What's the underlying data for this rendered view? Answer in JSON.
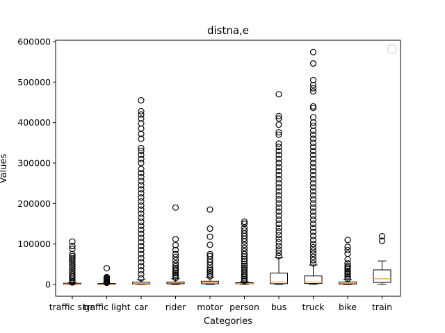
{
  "chart_data": {
    "type": "box",
    "title": "distna,e",
    "xlabel": "Categories",
    "ylabel": "Values",
    "ylim": [
      -25000,
      600000
    ],
    "yticks": [
      0,
      100000,
      200000,
      300000,
      400000,
      500000,
      600000
    ],
    "ytick_labels": [
      "0",
      "100000",
      "200000",
      "300000",
      "400000",
      "500000",
      "600000"
    ],
    "legend": "top-right, empty",
    "grid": false,
    "categories": [
      "traffic sign",
      "traffic light",
      "car",
      "rider",
      "motor",
      "person",
      "bus",
      "truck",
      "bike",
      "train"
    ],
    "boxes": [
      {
        "category": "traffic sign",
        "whislo": 0,
        "q1": 300,
        "med": 800,
        "q3": 1800,
        "whishi": 4000,
        "fliers": [
          5000,
          8000,
          12000,
          16000,
          20000,
          25000,
          30000,
          35000,
          40000,
          45000,
          50000,
          55000,
          60000,
          65000,
          70000,
          75000,
          88000,
          95000,
          106000
        ]
      },
      {
        "category": "traffic light",
        "whislo": 0,
        "q1": 200,
        "med": 500,
        "q3": 1200,
        "whishi": 3000,
        "fliers": [
          4000,
          6000,
          8000,
          10000,
          12000,
          14000,
          16000,
          18000,
          40000
        ]
      },
      {
        "category": "car",
        "whislo": 0,
        "q1": 800,
        "med": 2000,
        "q3": 5500,
        "whishi": 12000,
        "fliers": [
          15000,
          25000,
          35000,
          45000,
          55000,
          65000,
          75000,
          85000,
          95000,
          105000,
          115000,
          125000,
          135000,
          145000,
          155000,
          165000,
          175000,
          185000,
          195000,
          205000,
          215000,
          225000,
          235000,
          245000,
          255000,
          265000,
          275000,
          285000,
          300000,
          310000,
          320000,
          330000,
          337000,
          360000,
          372000,
          385000,
          398000,
          410000,
          420000,
          428000,
          455000
        ]
      },
      {
        "category": "rider",
        "whislo": 0,
        "q1": 1500,
        "med": 3500,
        "q3": 6000,
        "whishi": 14000,
        "fliers": [
          16000,
          20000,
          24000,
          28000,
          32000,
          36000,
          40000,
          45000,
          52000,
          60000,
          68000,
          75000,
          85000,
          97000,
          112000,
          190000
        ]
      },
      {
        "category": "motor",
        "whislo": 0,
        "q1": 1500,
        "med": 4000,
        "q3": 8000,
        "whishi": 18000,
        "fliers": [
          20000,
          25000,
          30000,
          35000,
          40000,
          48000,
          55000,
          62000,
          70000,
          75000,
          98000,
          118000,
          138000,
          185000
        ]
      },
      {
        "category": "person",
        "whislo": 0,
        "q1": 500,
        "med": 1200,
        "q3": 3000,
        "whishi": 7000,
        "fliers": [
          9000,
          13000,
          17000,
          21000,
          26000,
          31000,
          36000,
          41000,
          46000,
          51000,
          57000,
          63000,
          69000,
          75000,
          82000,
          90000,
          98000,
          106000,
          113000,
          120000,
          126000,
          133000,
          140000,
          150000,
          155000
        ]
      },
      {
        "category": "bus",
        "whislo": 0,
        "q1": 2000,
        "med": 6000,
        "q3": 28000,
        "whishi": 66000,
        "fliers": [
          70000,
          78000,
          86000,
          95000,
          104000,
          113000,
          122000,
          131000,
          140000,
          150000,
          160000,
          170000,
          180000,
          190000,
          200000,
          210000,
          220000,
          230000,
          240000,
          250000,
          260000,
          270000,
          280000,
          290000,
          300000,
          310000,
          320000,
          330000,
          340000,
          348000,
          370000,
          376000,
          395000,
          410000,
          416000,
          470000
        ]
      },
      {
        "category": "truck",
        "whislo": 0,
        "q1": 2500,
        "med": 6000,
        "q3": 21000,
        "whishi": 48000,
        "fliers": [
          52000,
          60000,
          68000,
          76000,
          84000,
          92000,
          100000,
          110000,
          120000,
          130000,
          140000,
          150000,
          160000,
          170000,
          180000,
          190000,
          200000,
          210000,
          220000,
          230000,
          240000,
          250000,
          260000,
          270000,
          280000,
          290000,
          300000,
          310000,
          320000,
          330000,
          340000,
          350000,
          360000,
          370000,
          380000,
          392000,
          400000,
          413000,
          436000,
          440000,
          477000,
          485000,
          493000,
          505000,
          546000,
          574000
        ]
      },
      {
        "category": "bike",
        "whislo": 0,
        "q1": 1000,
        "med": 3000,
        "q3": 6000,
        "whishi": 12000,
        "fliers": [
          14000,
          18000,
          22000,
          26000,
          30000,
          34000,
          38000,
          42000,
          46000,
          52000,
          62000,
          76000,
          85000,
          93000,
          110000
        ]
      },
      {
        "category": "train",
        "whislo": 0,
        "q1": 5000,
        "med": 14000,
        "q3": 36000,
        "whishi": 58000,
        "fliers": [
          108000,
          119000
        ]
      }
    ],
    "colors": {
      "box": "#000000",
      "median": "#ff7f0e",
      "flier": "#000000",
      "background": "#ffffff"
    }
  }
}
